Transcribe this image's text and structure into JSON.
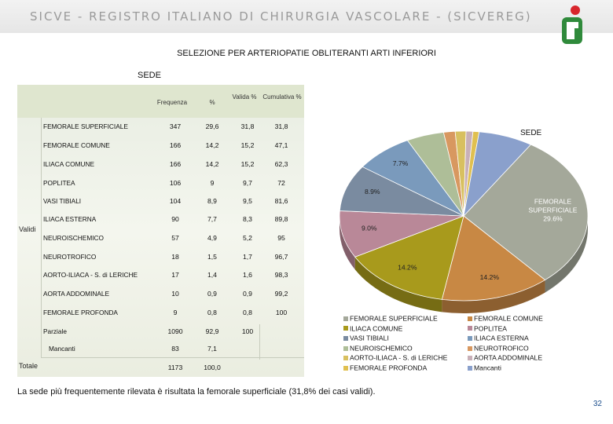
{
  "header": {
    "title": "SICVE - REGISTRO ITALIANO DI CHIRURGIA VASCOLARE - (SICVEREG)"
  },
  "subtitle": "SELEZIONE PER ARTERIOPATIE OBLITERANTI ARTI INFERIORI",
  "table": {
    "caption": "SEDE",
    "columns": [
      "Frequenza",
      "%",
      "Valida %",
      "Cumulativa %"
    ],
    "group_validi": "Validi",
    "group_totale": "Totale",
    "rows": [
      {
        "name": "FEMORALE SUPERFICIALE",
        "freq": "347",
        "pct": "29,6",
        "valid": "31,8",
        "cum": "31,8"
      },
      {
        "name": "FEMORALE COMUNE",
        "freq": "166",
        "pct": "14,2",
        "valid": "15,2",
        "cum": "47,1"
      },
      {
        "name": "ILIACA COMUNE",
        "freq": "166",
        "pct": "14,2",
        "valid": "15,2",
        "cum": "62,3"
      },
      {
        "name": "POPLITEA",
        "freq": "106",
        "pct": "9",
        "valid": "9,7",
        "cum": "72"
      },
      {
        "name": "VASI TIBIALI",
        "freq": "104",
        "pct": "8,9",
        "valid": "9,5",
        "cum": "81,6"
      },
      {
        "name": "ILIACA ESTERNA",
        "freq": "90",
        "pct": "7,7",
        "valid": "8,3",
        "cum": "89,8"
      },
      {
        "name": "NEUROISCHEMICO",
        "freq": "57",
        "pct": "4,9",
        "valid": "5,2",
        "cum": "95"
      },
      {
        "name": "NEUROTROFICO",
        "freq": "18",
        "pct": "1,5",
        "valid": "1,7",
        "cum": "96,7"
      },
      {
        "name": "AORTO-ILIACA - S. di LERICHE",
        "freq": "17",
        "pct": "1,4",
        "valid": "1,6",
        "cum": "98,3"
      },
      {
        "name": "AORTA ADDOMINALE",
        "freq": "10",
        "pct": "0,9",
        "valid": "0,9",
        "cum": "99,2"
      },
      {
        "name": "FEMORALE PROFONDA",
        "freq": "9",
        "pct": "0,8",
        "valid": "0,8",
        "cum": "100"
      },
      {
        "name": "Parziale",
        "freq": "1090",
        "pct": "92,9",
        "valid": "100",
        "cum": ""
      },
      {
        "name": "Mancanti",
        "freq": "83",
        "pct": "7,1",
        "valid": "",
        "cum": ""
      },
      {
        "name": "",
        "freq": "1173",
        "pct": "100,0",
        "valid": "",
        "cum": ""
      }
    ]
  },
  "chart_data": {
    "type": "pie",
    "title": "SEDE",
    "categories": [
      "FEMORALE SUPERFICIALE",
      "FEMORALE COMUNE",
      "ILIACA COMUNE",
      "POPLITEA",
      "VASI TIBIALI",
      "ILIACA ESTERNA",
      "NEUROISCHEMICO",
      "NEUROTROFICO",
      "AORTO-ILIACA - S. di LERICHE",
      "AORTA ADDOMINALE",
      "FEMORALE PROFONDA",
      "Mancanti"
    ],
    "values": [
      29.6,
      14.2,
      14.2,
      9.0,
      8.9,
      7.7,
      4.9,
      1.5,
      1.4,
      0.9,
      0.8,
      7.1
    ],
    "colors": [
      "#a4a89a",
      "#c88844",
      "#a89a1c",
      "#b98898",
      "#7a8ba0",
      "#7a9abc",
      "#aebe98",
      "#d89860",
      "#d8c060",
      "#c8b0b8",
      "#e0c050",
      "#8aa0cc"
    ],
    "slice_labels": [
      {
        "index": 0,
        "text": "FEMORALE SUPERFICIALE 29.6%"
      },
      {
        "index": 1,
        "text": "14.2%"
      },
      {
        "index": 2,
        "text": "14.2%"
      },
      {
        "index": 3,
        "text": "9.0%"
      },
      {
        "index": 4,
        "text": "8.9%"
      },
      {
        "index": 5,
        "text": "7.7%"
      }
    ],
    "legend_left": [
      {
        "name": "FEMORALE SUPERFICIALE",
        "color": "#a4a89a"
      },
      {
        "name": "ILIACA COMUNE",
        "color": "#a89a1c"
      },
      {
        "name": "VASI TIBIALI",
        "color": "#7a8ba0"
      },
      {
        "name": "NEUROISCHEMICO",
        "color": "#aebe98"
      },
      {
        "name": "AORTO-ILIACA - S. di LERICHE",
        "color": "#d8c060"
      },
      {
        "name": "FEMORALE PROFONDA",
        "color": "#e0c050"
      }
    ],
    "legend_right": [
      {
        "name": "FEMORALE COMUNE",
        "color": "#c88844"
      },
      {
        "name": "POPLITEA",
        "color": "#b98898"
      },
      {
        "name": "ILIACA ESTERNA",
        "color": "#7a9abc"
      },
      {
        "name": "NEUROTROFICO",
        "color": "#d89860"
      },
      {
        "name": "AORTA ADDOMINALE",
        "color": "#c8b0b8"
      },
      {
        "name": "Mancanti",
        "color": "#8aa0cc"
      }
    ]
  },
  "footnote": "La sede più frequentemente rilevata è risultata la femorale superficiale (31,8% dei casi validi).",
  "page_number": "32"
}
